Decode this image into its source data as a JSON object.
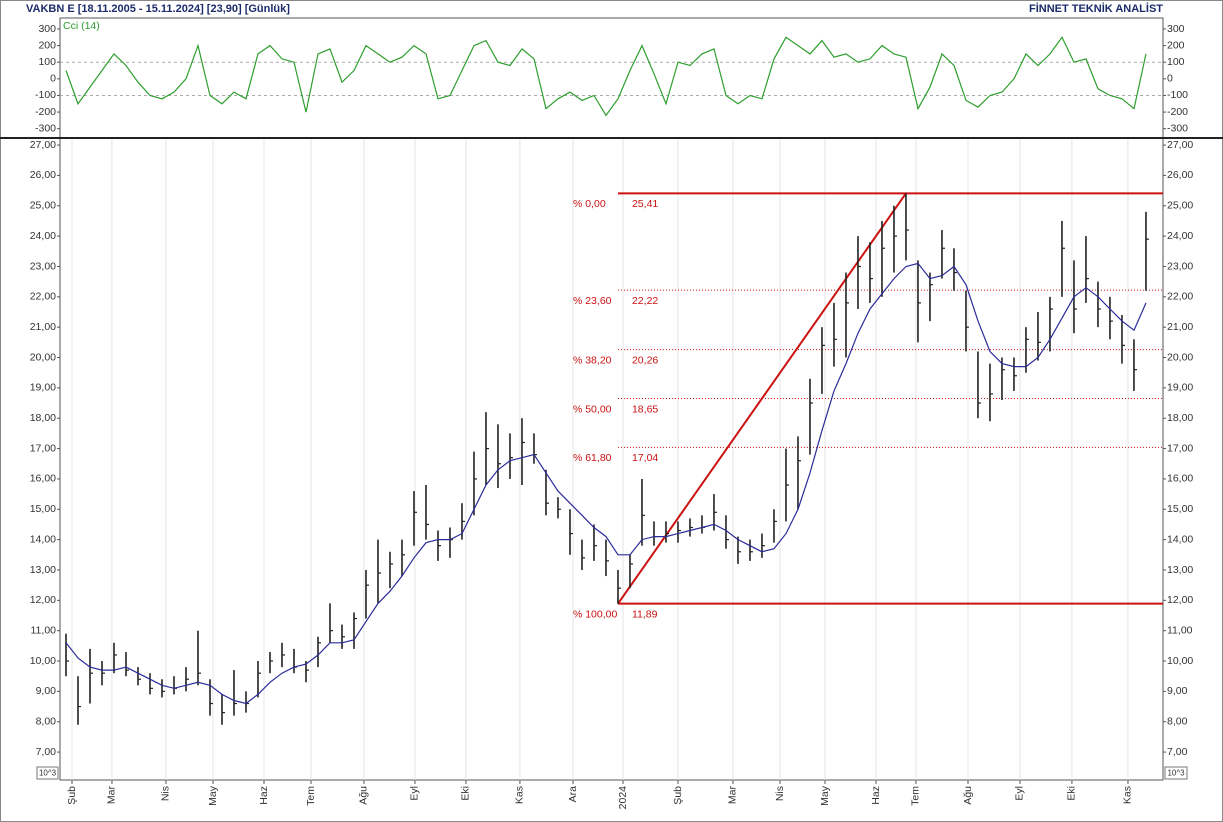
{
  "header": {
    "title": "VAKBN E  [18.11.2005 - 15.11.2024]  [23,90]  [Günlük]",
    "source": "FİNNET TEKNİK ANALİST"
  },
  "chart_data": [
    {
      "type": "line",
      "title": "Cci (14)",
      "x": [
        0,
        1,
        2,
        3,
        4,
        5,
        6,
        7,
        8,
        9,
        10,
        11,
        12,
        13,
        14,
        15,
        16,
        17,
        18,
        19,
        20,
        21,
        22,
        23,
        24,
        25,
        26,
        27,
        28,
        29,
        30,
        31,
        32,
        33,
        34,
        35,
        36,
        37,
        38,
        39,
        40,
        41,
        42,
        43,
        44,
        45,
        46,
        47,
        48,
        49,
        50,
        51,
        52,
        53,
        54,
        55,
        56,
        57,
        58,
        59,
        60,
        61,
        62,
        63,
        64,
        65,
        66,
        67,
        68,
        69,
        70,
        71,
        72,
        73,
        74,
        75,
        76,
        77,
        78,
        79,
        80,
        81,
        82,
        83,
        84,
        85,
        86,
        87,
        88,
        89,
        90
      ],
      "series": [
        {
          "color": "#2e9e2e",
          "values": [
            50,
            -150,
            -50,
            50,
            150,
            80,
            -20,
            -100,
            -120,
            -80,
            0,
            200,
            -100,
            -150,
            -80,
            -120,
            150,
            200,
            120,
            100,
            -200,
            150,
            180,
            -20,
            50,
            200,
            150,
            100,
            130,
            200,
            150,
            -120,
            -100,
            50,
            200,
            230,
            100,
            80,
            180,
            120,
            -180,
            -120,
            -80,
            -130,
            -100,
            -220,
            -120,
            50,
            200,
            30,
            -150,
            100,
            80,
            150,
            180,
            -100,
            -150,
            -100,
            -120,
            120,
            250,
            200,
            150,
            230,
            130,
            150,
            100,
            120,
            200,
            150,
            130,
            -180,
            -50,
            150,
            80,
            -130,
            -170,
            -100,
            -80,
            0,
            150,
            80,
            150,
            250,
            100,
            120,
            -60,
            -100,
            -120,
            -180,
            150
          ]
        }
      ],
      "xlim": [
        -0.5,
        91.42
      ],
      "ylim": [
        -350,
        360
      ],
      "yticks": [
        300,
        200,
        100,
        0,
        -100,
        -200,
        -300
      ],
      "guide_lines": [
        100,
        -100
      ]
    },
    {
      "type": "ohlc",
      "x": [
        0,
        1,
        2,
        3,
        4,
        5,
        6,
        7,
        8,
        9,
        10,
        11,
        12,
        13,
        14,
        15,
        16,
        17,
        18,
        19,
        20,
        21,
        22,
        23,
        24,
        25,
        26,
        27,
        28,
        29,
        30,
        31,
        32,
        33,
        34,
        35,
        36,
        37,
        38,
        39,
        40,
        41,
        42,
        43,
        44,
        45,
        46,
        47,
        48,
        49,
        50,
        51,
        52,
        53,
        54,
        55,
        56,
        57,
        58,
        59,
        60,
        61,
        62,
        63,
        64,
        65,
        66,
        67,
        68,
        69,
        70,
        71,
        72,
        73,
        74,
        75,
        76,
        77,
        78,
        79,
        80,
        81,
        82,
        83,
        84,
        85,
        86,
        87,
        88,
        89,
        90
      ],
      "high": [
        10.9,
        9.5,
        10.4,
        10.0,
        10.6,
        10.3,
        9.8,
        9.6,
        9.4,
        9.5,
        9.8,
        11.0,
        9.4,
        8.9,
        9.7,
        9.0,
        10.0,
        10.3,
        10.6,
        10.4,
        10.0,
        10.8,
        11.9,
        11.2,
        11.6,
        13.0,
        14.0,
        13.6,
        14.0,
        15.6,
        15.8,
        14.3,
        14.4,
        15.2,
        16.9,
        18.2,
        17.8,
        17.5,
        18.0,
        17.5,
        16.3,
        15.4,
        15.0,
        14.0,
        14.5,
        14.0,
        13.0,
        13.5,
        16.0,
        14.6,
        14.6,
        14.6,
        14.7,
        14.8,
        15.5,
        14.8,
        14.1,
        14.0,
        14.2,
        15.0,
        17.0,
        17.4,
        19.3,
        21.0,
        21.8,
        22.8,
        24.0,
        23.8,
        24.5,
        25.0,
        25.41,
        23.2,
        22.8,
        24.2,
        23.6,
        22.2,
        20.2,
        19.8,
        20.0,
        20.0,
        21.0,
        21.5,
        22.0,
        24.5,
        23.2,
        24.0,
        22.5,
        22.0,
        21.4,
        20.6,
        24.8
      ],
      "low": [
        9.5,
        7.9,
        8.6,
        9.2,
        9.6,
        9.5,
        9.2,
        8.9,
        8.8,
        8.9,
        9.0,
        9.2,
        8.2,
        7.9,
        8.2,
        8.3,
        8.8,
        9.6,
        9.8,
        9.6,
        9.3,
        9.8,
        10.6,
        10.4,
        10.4,
        11.4,
        11.9,
        12.4,
        12.8,
        13.8,
        14.0,
        13.3,
        13.4,
        14.0,
        14.8,
        15.8,
        15.7,
        16.0,
        15.8,
        16.5,
        14.8,
        14.7,
        13.5,
        13.0,
        13.3,
        12.8,
        11.89,
        12.4,
        13.8,
        13.8,
        13.9,
        13.9,
        14.1,
        14.2,
        14.3,
        13.7,
        13.2,
        13.3,
        13.4,
        13.9,
        14.6,
        15.0,
        16.8,
        18.8,
        19.7,
        20.0,
        21.6,
        21.8,
        22.0,
        22.8,
        23.2,
        20.5,
        21.2,
        22.6,
        22.2,
        20.2,
        18.0,
        17.9,
        18.6,
        18.9,
        19.5,
        19.9,
        20.2,
        22.0,
        20.8,
        21.8,
        21.0,
        20.6,
        19.8,
        18.9,
        22.2
      ],
      "close": [
        10.0,
        8.5,
        9.6,
        9.6,
        10.2,
        9.7,
        9.4,
        9.1,
        9.0,
        9.1,
        9.4,
        9.6,
        8.6,
        8.3,
        8.6,
        8.6,
        9.6,
        10.0,
        10.2,
        9.8,
        9.7,
        10.6,
        11.0,
        10.8,
        11.4,
        12.5,
        12.9,
        13.2,
        13.5,
        14.9,
        14.5,
        13.8,
        14.0,
        14.6,
        16.0,
        17.0,
        16.5,
        16.7,
        17.2,
        16.8,
        15.2,
        15.0,
        14.2,
        13.4,
        13.8,
        13.3,
        12.4,
        13.2,
        14.8,
        14.1,
        14.2,
        14.3,
        14.4,
        14.4,
        14.9,
        14.0,
        13.6,
        13.6,
        13.8,
        14.6,
        15.8,
        16.6,
        18.5,
        20.4,
        20.6,
        21.8,
        23.0,
        22.6,
        23.6,
        24.0,
        24.2,
        21.8,
        22.4,
        23.6,
        22.8,
        21.0,
        18.5,
        18.8,
        19.6,
        19.4,
        20.6,
        20.5,
        21.6,
        23.6,
        21.6,
        22.6,
        21.6,
        21.2,
        20.4,
        19.6,
        23.9
      ],
      "color": "#222222",
      "moving_average": {
        "color": "#2b2b9a",
        "values": [
          10.6,
          10.1,
          9.8,
          9.7,
          9.7,
          9.8,
          9.6,
          9.4,
          9.2,
          9.1,
          9.2,
          9.3,
          9.2,
          8.9,
          8.7,
          8.6,
          8.9,
          9.3,
          9.6,
          9.8,
          9.9,
          10.2,
          10.6,
          10.6,
          10.7,
          11.3,
          11.9,
          12.3,
          12.8,
          13.4,
          13.9,
          14.0,
          14.0,
          14.2,
          15.0,
          15.8,
          16.3,
          16.6,
          16.7,
          16.8,
          16.2,
          15.6,
          15.2,
          14.8,
          14.4,
          14.1,
          13.5,
          13.5,
          14.0,
          14.1,
          14.1,
          14.2,
          14.3,
          14.4,
          14.5,
          14.3,
          14.0,
          13.8,
          13.6,
          13.7,
          14.2,
          15.0,
          16.2,
          17.6,
          18.9,
          19.8,
          20.8,
          21.6,
          22.1,
          22.6,
          23.0,
          23.1,
          22.6,
          22.7,
          23.0,
          22.4,
          21.2,
          20.2,
          19.8,
          19.7,
          19.7,
          20.0,
          20.6,
          21.3,
          22.0,
          22.3,
          22.0,
          21.6,
          21.2,
          20.9,
          21.8
        ]
      },
      "fibonacci": {
        "color": "#cc1111",
        "x_start": 46,
        "x_end": 70,
        "levels": [
          {
            "name": "% 0,00",
            "value": 25.41,
            "label": "25,41"
          },
          {
            "name": "% 23,60",
            "value": 22.22,
            "label": "22,22"
          },
          {
            "name": "% 38,20",
            "value": 20.26,
            "label": "20,26"
          },
          {
            "name": "% 50,00",
            "value": 18.65,
            "label": "18,65"
          },
          {
            "name": "% 61,80",
            "value": 17.04,
            "label": "17,04"
          },
          {
            "name": "% 100,00",
            "value": 11.89,
            "label": "11,89"
          }
        ]
      },
      "axis_unit": "10^3",
      "xlim": [
        -0.5,
        91.42
      ],
      "ylim": [
        6.08,
        27.2
      ],
      "yticks": [
        {
          "value": 27,
          "label": "27,00"
        },
        {
          "value": 26,
          "label": "26,00"
        },
        {
          "value": 25,
          "label": "25,00"
        },
        {
          "value": 24,
          "label": "24,00"
        },
        {
          "value": 23,
          "label": "23,00"
        },
        {
          "value": 22,
          "label": "22,00"
        },
        {
          "value": 21,
          "label": "21,00"
        },
        {
          "value": 20,
          "label": "20,00"
        },
        {
          "value": 19,
          "label": "19,00"
        },
        {
          "value": 18,
          "label": "18,00"
        },
        {
          "value": 17,
          "label": "17,00"
        },
        {
          "value": 16,
          "label": "16,00"
        },
        {
          "value": 15,
          "label": "15,00"
        },
        {
          "value": 14,
          "label": "14,00"
        },
        {
          "value": 13,
          "label": "13,00"
        },
        {
          "value": 12,
          "label": "12,00"
        },
        {
          "value": 11,
          "label": "11,00"
        },
        {
          "value": 10,
          "label": "10,00"
        },
        {
          "value": 9,
          "label": "9,00"
        },
        {
          "value": 8,
          "label": "8,00"
        },
        {
          "value": 7,
          "label": "7,00"
        }
      ],
      "xticks": [
        {
          "value": 0.5,
          "label": "Şub"
        },
        {
          "value": 3.83,
          "label": "Mar"
        },
        {
          "value": 8.33,
          "label": "Nis"
        },
        {
          "value": 12.25,
          "label": "May"
        },
        {
          "value": 16.5,
          "label": "Haz"
        },
        {
          "value": 20.42,
          "label": "Tem"
        },
        {
          "value": 24.83,
          "label": "Ağu"
        },
        {
          "value": 29.08,
          "label": "Eyl"
        },
        {
          "value": 33.33,
          "label": "Eki"
        },
        {
          "value": 37.83,
          "label": "Kas"
        },
        {
          "value": 42.25,
          "label": "Ara"
        },
        {
          "value": 46.42,
          "label": "2024"
        },
        {
          "value": 51,
          "label": "Şub"
        },
        {
          "value": 55.58,
          "label": "Mar"
        },
        {
          "value": 59.5,
          "label": "Nis"
        },
        {
          "value": 63.25,
          "label": "May"
        },
        {
          "value": 67.5,
          "label": "Haz"
        },
        {
          "value": 70.83,
          "label": "Tem"
        },
        {
          "value": 75.17,
          "label": "Ağu"
        },
        {
          "value": 79.5,
          "label": "Eyl"
        },
        {
          "value": 83.83,
          "label": "Eki"
        },
        {
          "value": 88.5,
          "label": "Kas"
        }
      ]
    }
  ]
}
